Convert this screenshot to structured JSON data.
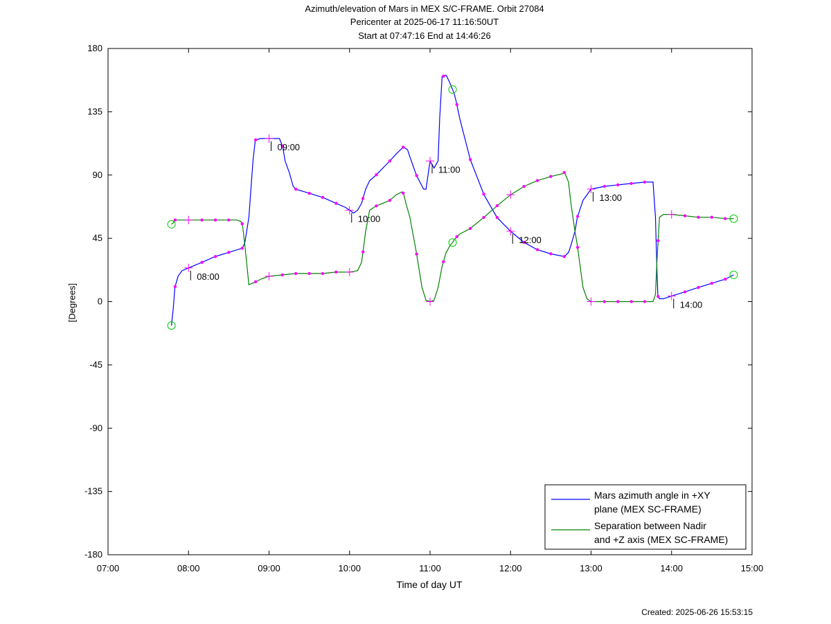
{
  "header": {
    "title_line1": "Azimuth/elevation of Mars in MEX S/C-FRAME.  Orbit 27084",
    "title_line2": "Pericenter at 2025-06-17 11:16:50UT",
    "title_line3": "Start at 07:47:16 End at 14:46:26"
  },
  "footer": {
    "created": "Created: 2025-06-26 15:53:15"
  },
  "chart_data": {
    "type": "line",
    "title": "Azimuth/elevation of Mars in MEX S/C-FRAME.  Orbit 27084",
    "xlabel": "Time of day UT",
    "ylabel": "[Degrees]",
    "xlim": [
      7.0,
      15.0
    ],
    "ylim": [
      -180,
      180
    ],
    "x_ticks": [
      "07:00",
      "08:00",
      "09:00",
      "10:00",
      "11:00",
      "12:00",
      "13:00",
      "14:00",
      "15:00"
    ],
    "y_ticks": [
      180,
      135,
      90,
      45,
      0,
      -45,
      -90,
      -135,
      -180
    ],
    "legend_position": "bottom-right",
    "series": [
      {
        "name": "Mars azimuth angle in +XY plane (MEX SC-FRAME)",
        "legend_lines": [
          "Mars azimuth angle in +XY",
          "plane (MEX SC-FRAME)"
        ],
        "color": "#0000ff",
        "x": [
          7.788,
          7.81,
          7.83,
          7.87,
          7.92,
          8.0,
          8.17,
          8.33,
          8.5,
          8.67,
          8.7,
          8.75,
          8.8,
          8.83,
          8.9,
          9.0,
          9.1,
          9.13,
          9.17,
          9.2,
          9.25,
          9.3,
          9.33,
          9.5,
          9.67,
          9.83,
          9.95,
          10.0,
          10.05,
          10.1,
          10.15,
          10.2,
          10.25,
          10.33,
          10.5,
          10.58,
          10.67,
          10.72,
          10.75,
          10.83,
          10.92,
          10.95,
          11.0,
          11.05,
          11.1,
          11.12,
          11.15,
          11.2,
          11.25,
          11.3,
          11.33,
          11.37,
          11.5,
          11.67,
          11.83,
          12.0,
          12.17,
          12.33,
          12.5,
          12.67,
          12.72,
          12.75,
          12.8,
          12.83,
          12.9,
          13.0,
          13.17,
          13.33,
          13.5,
          13.67,
          13.77,
          13.8,
          13.82,
          13.83,
          13.85,
          13.9,
          14.0,
          14.17,
          14.33,
          14.5,
          14.67,
          14.772
        ],
        "y": [
          -17,
          -5,
          10,
          18,
          22,
          24,
          28,
          32,
          35,
          38,
          42,
          60,
          100,
          115,
          116,
          116,
          116,
          116,
          110,
          100,
          92,
          82,
          80,
          77,
          74,
          70,
          67,
          65,
          63,
          65,
          70,
          80,
          86,
          90,
          100,
          105,
          110,
          108,
          103,
          90,
          80,
          80,
          100,
          95,
          100,
          130,
          160,
          161,
          155,
          148,
          141,
          130,
          101,
          76,
          60,
          50,
          42,
          37,
          34,
          32,
          35,
          40,
          50,
          60,
          72,
          80,
          82,
          83,
          84,
          85,
          85,
          60,
          20,
          4,
          2,
          2,
          4,
          7,
          10,
          13,
          16,
          19
        ]
      },
      {
        "name": "Separation between Nadir and +Z axis (MEX SC-FRAME)",
        "legend_lines": [
          "Separation between Nadir",
          "and +Z axis (MEX SC-FRAME)"
        ],
        "color": "#008000",
        "x": [
          7.788,
          7.81,
          7.83,
          7.87,
          8.0,
          8.17,
          8.33,
          8.5,
          8.6,
          8.65,
          8.67,
          8.7,
          8.75,
          8.83,
          8.9,
          9.0,
          9.17,
          9.33,
          9.5,
          9.67,
          9.83,
          10.0,
          10.1,
          10.15,
          10.2,
          10.25,
          10.33,
          10.5,
          10.58,
          10.65,
          10.67,
          10.7,
          10.75,
          10.83,
          10.9,
          10.95,
          11.0,
          11.05,
          11.1,
          11.15,
          11.2,
          11.25,
          11.28,
          11.3,
          11.33,
          11.37,
          11.5,
          11.67,
          11.83,
          12.0,
          12.17,
          12.33,
          12.5,
          12.65,
          12.67,
          12.72,
          12.75,
          12.8,
          12.83,
          12.9,
          12.95,
          13.0,
          13.17,
          13.33,
          13.5,
          13.67,
          13.77,
          13.8,
          13.82,
          13.85,
          13.9,
          14.0,
          14.17,
          14.33,
          14.5,
          14.67,
          14.772
        ],
        "y": [
          55,
          56,
          58,
          58,
          58,
          58,
          58,
          58,
          58,
          57,
          55,
          40,
          12,
          14,
          16,
          18,
          19,
          20,
          20,
          20,
          21,
          21,
          22,
          28,
          50,
          65,
          68,
          72,
          76,
          78,
          77,
          70,
          60,
          35,
          10,
          1,
          0,
          1,
          10,
          25,
          35,
          40,
          42,
          44,
          46,
          48,
          52,
          60,
          68,
          76,
          82,
          86,
          89,
          91,
          92,
          85,
          70,
          50,
          40,
          10,
          2,
          0,
          0,
          0,
          0,
          0,
          0,
          5,
          30,
          60,
          62,
          62,
          61,
          60,
          60,
          59,
          59
        ]
      }
    ]
  }
}
